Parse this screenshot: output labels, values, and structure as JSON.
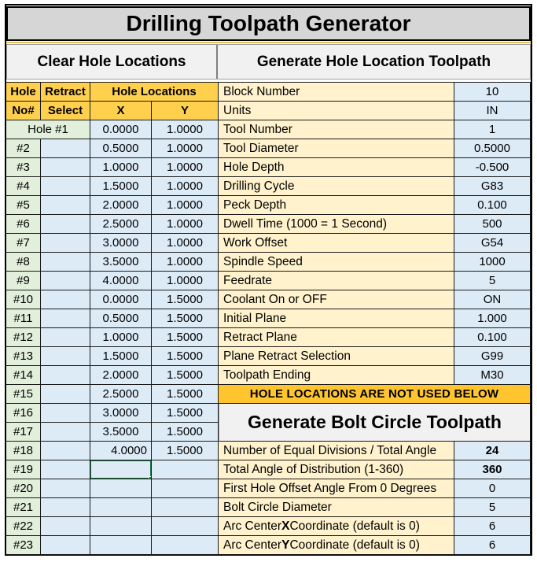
{
  "title": "Drilling Toolpath Generator",
  "buttons": {
    "clear_holes": "Clear Hole Locations",
    "generate_toolpath": "Generate Hole Location Toolpath",
    "generate_bolt_circle": "Generate Bolt Circle Toolpath"
  },
  "hole_table": {
    "header": {
      "hole": "Hole",
      "no": "No#",
      "retract": "Retract",
      "select": "Select",
      "group": "Hole Locations",
      "x": "X",
      "y": "Y"
    },
    "first_row": {
      "label": "Hole #1",
      "x": "0.0000",
      "y": "1.0000"
    },
    "rows": [
      {
        "label": "#2",
        "x": "0.5000",
        "y": "1.0000",
        "x_state": "normal"
      },
      {
        "label": "#3",
        "x": "1.0000",
        "y": "1.0000",
        "x_state": "normal"
      },
      {
        "label": "#4",
        "x": "1.5000",
        "y": "1.0000",
        "x_state": "normal"
      },
      {
        "label": "#5",
        "x": "2.0000",
        "y": "1.0000",
        "x_state": "normal"
      },
      {
        "label": "#6",
        "x": "2.5000",
        "y": "1.0000",
        "x_state": "normal"
      },
      {
        "label": "#7",
        "x": "3.0000",
        "y": "1.0000",
        "x_state": "normal"
      },
      {
        "label": "#8",
        "x": "3.5000",
        "y": "1.0000",
        "x_state": "normal"
      },
      {
        "label": "#9",
        "x": "4.0000",
        "y": "1.0000",
        "x_state": "normal"
      },
      {
        "label": "#10",
        "x": "0.0000",
        "y": "1.5000",
        "x_state": "normal"
      },
      {
        "label": "#11",
        "x": "0.5000",
        "y": "1.5000",
        "x_state": "normal"
      },
      {
        "label": "#12",
        "x": "1.0000",
        "y": "1.5000",
        "x_state": "normal"
      },
      {
        "label": "#13",
        "x": "1.5000",
        "y": "1.5000",
        "x_state": "normal"
      },
      {
        "label": "#14",
        "x": "2.0000",
        "y": "1.5000",
        "x_state": "normal"
      },
      {
        "label": "#15",
        "x": "2.5000",
        "y": "1.5000",
        "x_state": "normal"
      },
      {
        "label": "#16",
        "x": "3.0000",
        "y": "1.5000",
        "x_state": "normal"
      },
      {
        "label": "#17",
        "x": "3.5000",
        "y": "1.5000",
        "x_state": "normal"
      },
      {
        "label": "#18",
        "x": "4.0000",
        "y": "1.5000",
        "x_state": "right"
      },
      {
        "label": "#19",
        "x": "",
        "y": "",
        "x_state": "selected"
      },
      {
        "label": "#20",
        "x": "",
        "y": "",
        "x_state": "normal"
      },
      {
        "label": "#21",
        "x": "",
        "y": "",
        "x_state": "normal"
      },
      {
        "label": "#22",
        "x": "",
        "y": "",
        "x_state": "normal"
      },
      {
        "label": "#23",
        "x": "",
        "y": "",
        "x_state": "normal"
      }
    ]
  },
  "params": [
    {
      "label": "Block Number",
      "value": "10"
    },
    {
      "label": "Units",
      "value": "IN"
    },
    {
      "label": "Tool Number",
      "value": "1"
    },
    {
      "label": "Tool Diameter",
      "value": "0.5000"
    },
    {
      "label": "Hole Depth",
      "value": "-0.500"
    },
    {
      "label": "Drilling Cycle",
      "value": "G83"
    },
    {
      "label": "Peck Depth",
      "value": "0.100"
    },
    {
      "label": "Dwell Time (1000 = 1 Second)",
      "value": "500"
    },
    {
      "label": "Work Offset",
      "value": "G54"
    },
    {
      "label": "Spindle Speed",
      "value": "1000"
    },
    {
      "label": "Feedrate",
      "value": "5"
    },
    {
      "label": "Coolant On or OFF",
      "value": "ON"
    },
    {
      "label": "Initial Plane",
      "value": "1.000"
    },
    {
      "label": "Retract Plane",
      "value": "0.100"
    },
    {
      "label": "Plane Retract Selection",
      "value": "G99"
    },
    {
      "label": "Toolpath Ending",
      "value": "M30"
    }
  ],
  "banner": "HOLE LOCATIONS ARE NOT USED BELOW",
  "bolt_params": [
    {
      "pre": "Number of Equal Divisions / Total Angle",
      "em": "",
      "post": "",
      "value": "24",
      "weight": "bold"
    },
    {
      "pre": "Total Angle of Distribution (1-360)",
      "em": "",
      "post": "",
      "value": "360",
      "weight": "bold"
    },
    {
      "pre": "First Hole Offset Angle From 0 Degrees",
      "em": "",
      "post": "",
      "value": "0",
      "weight": "normal"
    },
    {
      "pre": "Bolt Circle Diameter",
      "em": "",
      "post": "",
      "value": "5",
      "weight": "normal"
    },
    {
      "pre": "Arc Center ",
      "em": "X",
      "post": " Coordinate (default is 0)",
      "value": "6",
      "weight": "normal"
    },
    {
      "pre": "Arc Center ",
      "em": "Y",
      "post": " Coordinate (default is 0)",
      "value": "6",
      "weight": "normal"
    }
  ],
  "colors": {
    "header_gold": "#FFD04D",
    "banner_gold": "#FFC42E",
    "label_cream": "#FFF2CC",
    "value_blue": "#DDEBF7",
    "hole_green": "#E2EFDA",
    "title_gray": "#D6D6D6",
    "button_gray": "#F1F1F1",
    "selection_green": "#1E7145",
    "grid_line": "#1A1A1A"
  }
}
